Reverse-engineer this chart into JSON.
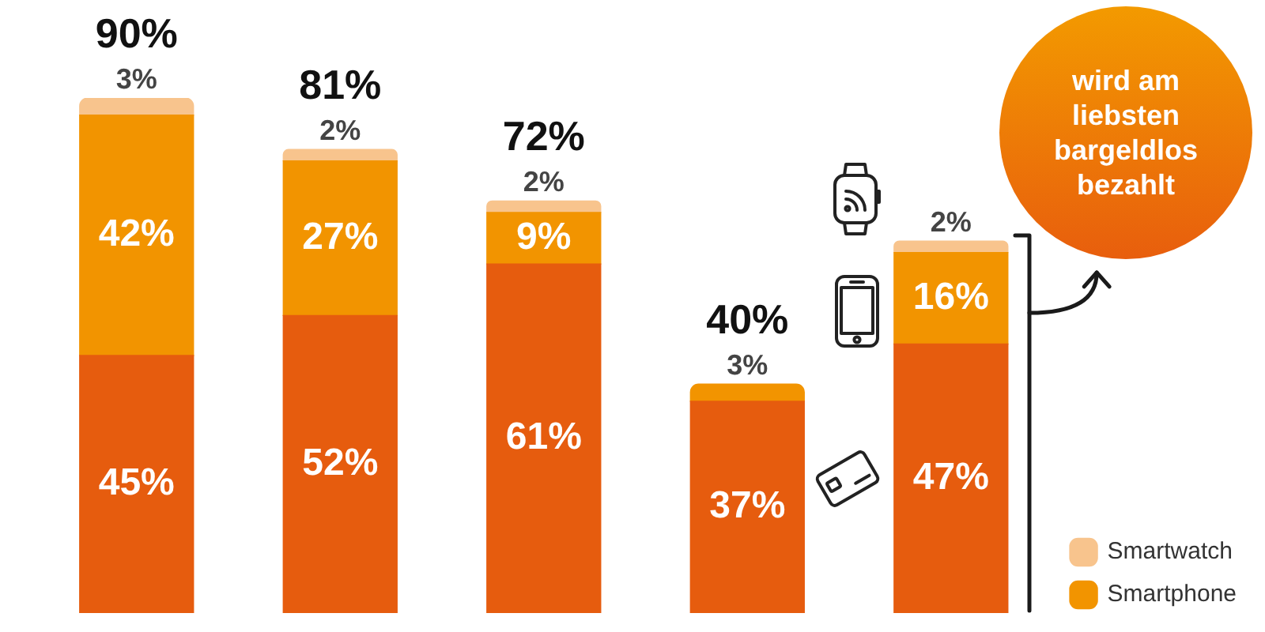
{
  "chart_data": {
    "type": "bar",
    "stacked": true,
    "categories": [
      null,
      null,
      null,
      null,
      null
    ],
    "series": [
      {
        "color": "#e65c0e",
        "values": [
          45,
          52,
          61,
          37,
          47
        ],
        "value_labels": [
          "45%",
          "52%",
          "61%",
          "37%",
          "47%"
        ]
      },
      {
        "name": "Smartphone",
        "color": "#f29400",
        "values": [
          42,
          27,
          9,
          3,
          16
        ],
        "value_labels": [
          "42%",
          "27%",
          "9%",
          "3%",
          "16%"
        ]
      },
      {
        "name": "Smartwatch",
        "color": "#f8c48d",
        "values": [
          3,
          2,
          2,
          null,
          2
        ],
        "value_labels": [
          "3%",
          "2%",
          "2%",
          null,
          "2%"
        ]
      }
    ],
    "totals": [
      "90%",
      "81%",
      "72%",
      "40%",
      null
    ],
    "annotations": [
      "wird am liebsten bargeldlos bezahlt"
    ],
    "legend": "bottom right",
    "grid": false,
    "tick_labels": false
  }
}
